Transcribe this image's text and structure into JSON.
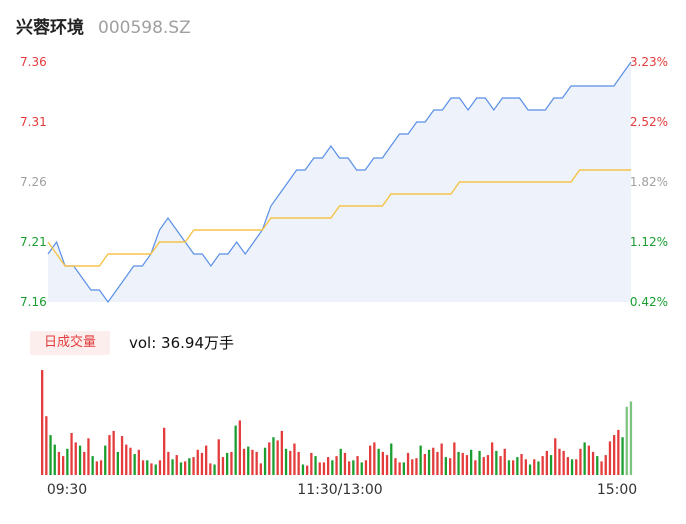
{
  "header": {
    "name": "兴蓉环境",
    "code": "000598.SZ"
  },
  "volume": {
    "badge": "日成交量",
    "label": "vol: 36.94万手"
  },
  "colors": {
    "price_line": "#5a8fe6",
    "avg_line": "#f5c34b",
    "up": "#e43c3c",
    "down": "#1a9e2f",
    "neutral": "#a0a0a0",
    "fill": "#eef3fb"
  },
  "chart_data": [
    {
      "type": "line",
      "title": "",
      "ylim": [
        7.16,
        7.36
      ],
      "y_ticks_left": [
        "7.36",
        "7.31",
        "7.26",
        "7.21",
        "7.16"
      ],
      "y_ticks_right": [
        "3.23%",
        "2.52%",
        "1.82%",
        "1.12%",
        "0.42%"
      ],
      "x_ticks": [
        "09:30",
        "11:30/13:00",
        "15:00"
      ],
      "series": [
        {
          "values": [
            7.2,
            7.21,
            7.19,
            7.19,
            7.18,
            7.17,
            7.17,
            7.16,
            7.17,
            7.18,
            7.19,
            7.19,
            7.2,
            7.22,
            7.23,
            7.22,
            7.21,
            7.2,
            7.2,
            7.19,
            7.2,
            7.2,
            7.21,
            7.2,
            7.21,
            7.22,
            7.24,
            7.25,
            7.26,
            7.27,
            7.27,
            7.28,
            7.28,
            7.29,
            7.28,
            7.28,
            7.27,
            7.27,
            7.28,
            7.28,
            7.29,
            7.3,
            7.3,
            7.31,
            7.31,
            7.32,
            7.32,
            7.33,
            7.33,
            7.32,
            7.33,
            7.33,
            7.32,
            7.33,
            7.33,
            7.33,
            7.32,
            7.32,
            7.32,
            7.33,
            7.33,
            7.34,
            7.34,
            7.34,
            7.34,
            7.34,
            7.34,
            7.35,
            7.36
          ]
        },
        {
          "values": [
            7.21,
            7.2,
            7.19,
            7.19,
            7.19,
            7.19,
            7.19,
            7.2,
            7.2,
            7.2,
            7.2,
            7.2,
            7.2,
            7.21,
            7.21,
            7.21,
            7.21,
            7.22,
            7.22,
            7.22,
            7.22,
            7.22,
            7.22,
            7.22,
            7.22,
            7.22,
            7.23,
            7.23,
            7.23,
            7.23,
            7.23,
            7.23,
            7.23,
            7.23,
            7.24,
            7.24,
            7.24,
            7.24,
            7.24,
            7.24,
            7.25,
            7.25,
            7.25,
            7.25,
            7.25,
            7.25,
            7.25,
            7.25,
            7.26,
            7.26,
            7.26,
            7.26,
            7.26,
            7.26,
            7.26,
            7.26,
            7.26,
            7.26,
            7.26,
            7.26,
            7.26,
            7.26,
            7.27,
            7.27,
            7.27,
            7.27,
            7.27,
            7.27,
            7.27
          ]
        }
      ]
    },
    {
      "type": "bar",
      "title": "",
      "x_ticks": [
        "09:30",
        "11:30/13:00",
        "15:00"
      ],
      "series": [
        {
          "values": [
            100,
            56,
            38,
            29,
            22,
            18,
            25,
            40,
            31,
            28,
            22,
            35,
            18,
            13,
            14,
            28,
            38,
            42,
            22,
            37,
            29,
            26,
            20,
            24,
            14,
            14,
            11,
            10,
            14,
            45,
            22,
            15,
            19,
            12,
            13,
            16,
            17,
            24,
            21,
            28,
            11,
            10,
            34,
            17,
            21,
            22,
            47,
            52,
            25,
            27,
            24,
            22,
            11,
            26,
            31,
            36,
            33,
            42,
            25,
            23,
            30,
            22,
            10,
            9,
            21,
            18,
            12,
            12,
            17,
            14,
            18,
            25,
            21,
            13,
            14,
            18,
            12,
            14,
            28,
            31,
            25,
            22,
            19,
            30,
            16,
            12,
            12,
            21,
            15,
            16,
            28,
            20,
            24,
            26,
            22,
            30,
            17,
            16,
            31,
            22,
            21,
            19,
            24,
            14,
            23,
            17,
            19,
            31,
            23,
            18,
            25,
            14,
            14,
            17,
            20,
            15,
            10,
            15,
            13,
            18,
            23,
            19,
            35,
            25,
            23,
            17,
            15,
            15,
            25,
            31,
            28,
            22,
            18,
            13,
            19,
            32,
            38,
            43,
            36,
            65,
            70
          ]
        },
        {
          "values": [
            1,
            1,
            -1,
            -1,
            1,
            1,
            -1,
            1,
            1,
            -1,
            1,
            1,
            -1,
            1,
            1,
            -1,
            1,
            1,
            -1,
            1,
            1,
            1,
            -1,
            1,
            1,
            -1,
            1,
            -1,
            1,
            1,
            1,
            -1,
            1,
            -1,
            1,
            -1,
            1,
            1,
            1,
            1,
            1,
            -1,
            1,
            1,
            -1,
            1,
            -1,
            1,
            1,
            -1,
            1,
            1,
            1,
            -1,
            1,
            -1,
            1,
            1,
            -1,
            1,
            1,
            1,
            -1,
            1,
            1,
            -1,
            1,
            1,
            1,
            -1,
            1,
            -1,
            1,
            1,
            -1,
            1,
            -1,
            1,
            1,
            1,
            -1,
            1,
            1,
            -1,
            1,
            1,
            -1,
            1,
            1,
            1,
            -1,
            1,
            -1,
            1,
            1,
            1,
            -1,
            1,
            1,
            -1,
            1,
            1,
            -1,
            1,
            -1,
            1,
            1,
            1,
            -1,
            1,
            1,
            -1,
            1,
            -1,
            1,
            1,
            -1,
            1,
            -1,
            1,
            1,
            -1,
            1,
            1,
            1,
            1,
            -1,
            1,
            1,
            -1,
            1,
            1,
            -1,
            1,
            1,
            1,
            1,
            1,
            -1,
            0
          ]
        }
      ]
    }
  ]
}
